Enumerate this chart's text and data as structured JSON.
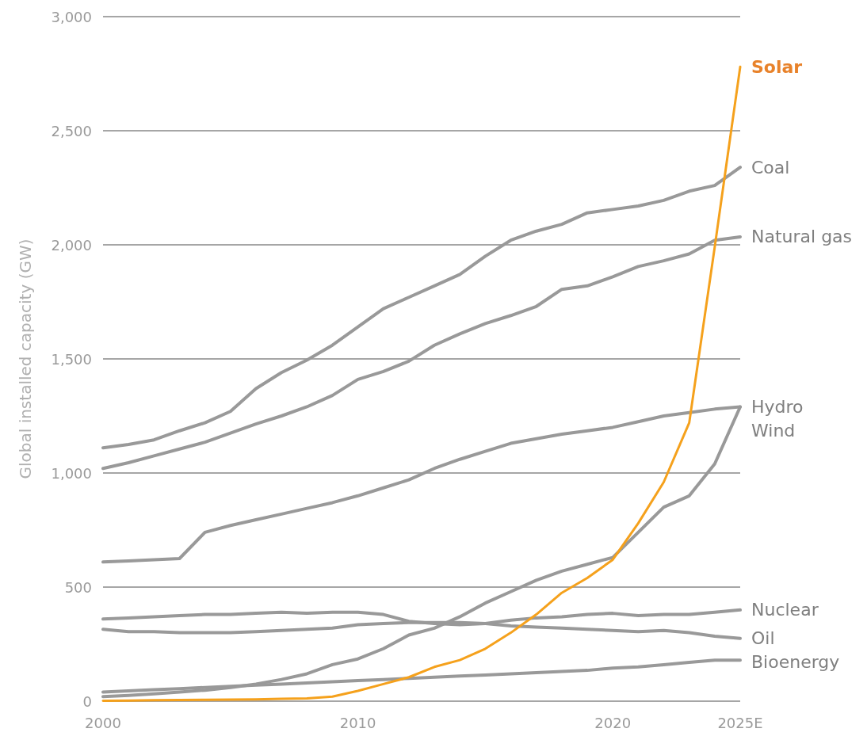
{
  "chart_data": {
    "type": "line",
    "ylabel": "Global installed capacity (GW)",
    "x": [
      2000,
      2001,
      2002,
      2003,
      2004,
      2005,
      2006,
      2007,
      2008,
      2009,
      2010,
      2011,
      2012,
      2013,
      2014,
      2015,
      2016,
      2017,
      2018,
      2019,
      2020,
      2021,
      2022,
      2023,
      2024,
      2025
    ],
    "xlim": [
      2000,
      2025
    ],
    "xticks": [
      {
        "value": 2000,
        "label": "2000"
      },
      {
        "value": 2010,
        "label": "2010"
      },
      {
        "value": 2020,
        "label": "2020"
      },
      {
        "value": 2025,
        "label": "2025E"
      }
    ],
    "ylim": [
      0,
      3000
    ],
    "yticks": [
      0,
      500,
      {
        "value": 1000,
        "label": "1,000"
      },
      {
        "value": 1500,
        "label": "1,500"
      },
      {
        "value": 2000,
        "label": "2,000"
      },
      {
        "value": 2500,
        "label": "2,500"
      },
      {
        "value": 3000,
        "label": "3,000"
      }
    ],
    "grid": "y",
    "legend": false,
    "marker": "none",
    "line_style": "solid",
    "series": [
      {
        "name": "Solar",
        "color": "#f5a11c",
        "values": [
          2,
          3,
          4,
          5,
          6,
          7,
          8,
          10,
          12,
          20,
          45,
          75,
          105,
          150,
          180,
          230,
          300,
          380,
          475,
          540,
          620,
          780,
          960,
          1220,
          1990,
          2780
        ]
      },
      {
        "name": "Coal",
        "color": "#999999",
        "values": [
          1110,
          1125,
          1145,
          1185,
          1220,
          1270,
          1370,
          1440,
          1495,
          1560,
          1640,
          1720,
          1770,
          1820,
          1870,
          1950,
          2020,
          2060,
          2090,
          2140,
          2155,
          2170,
          2195,
          2235,
          2260,
          2340
        ]
      },
      {
        "name": "Natural gas",
        "color": "#999999",
        "values": [
          1020,
          1045,
          1075,
          1105,
          1135,
          1175,
          1215,
          1250,
          1290,
          1340,
          1410,
          1445,
          1490,
          1560,
          1610,
          1655,
          1690,
          1730,
          1805,
          1820,
          1860,
          1905,
          1930,
          1960,
          2020,
          2035
        ]
      },
      {
        "name": "Hydro",
        "color": "#999999",
        "values": [
          610,
          615,
          620,
          625,
          740,
          770,
          795,
          820,
          845,
          870,
          900,
          935,
          970,
          1020,
          1060,
          1095,
          1130,
          1150,
          1170,
          1185,
          1200,
          1225,
          1250,
          1265,
          1280,
          1290
        ]
      },
      {
        "name": "Wind",
        "color": "#999999",
        "values": [
          20,
          25,
          32,
          40,
          48,
          60,
          75,
          95,
          120,
          160,
          185,
          230,
          290,
          320,
          370,
          430,
          480,
          530,
          570,
          600,
          630,
          740,
          850,
          900,
          1040,
          1290
        ]
      },
      {
        "name": "Nuclear",
        "color": "#999999",
        "values": [
          360,
          365,
          370,
          375,
          380,
          380,
          385,
          390,
          385,
          390,
          390,
          380,
          350,
          340,
          335,
          340,
          355,
          365,
          370,
          380,
          385,
          375,
          380,
          380,
          390,
          400
        ]
      },
      {
        "name": "Oil",
        "color": "#999999",
        "values": [
          315,
          305,
          305,
          300,
          300,
          300,
          305,
          310,
          315,
          320,
          335,
          340,
          345,
          345,
          345,
          340,
          330,
          325,
          320,
          315,
          310,
          305,
          310,
          300,
          285,
          275
        ]
      },
      {
        "name": "Bioenergy",
        "color": "#999999",
        "values": [
          40,
          45,
          50,
          55,
          60,
          65,
          70,
          75,
          80,
          85,
          90,
          95,
          100,
          105,
          110,
          115,
          120,
          125,
          130,
          135,
          145,
          150,
          160,
          170,
          180,
          180
        ]
      }
    ]
  }
}
